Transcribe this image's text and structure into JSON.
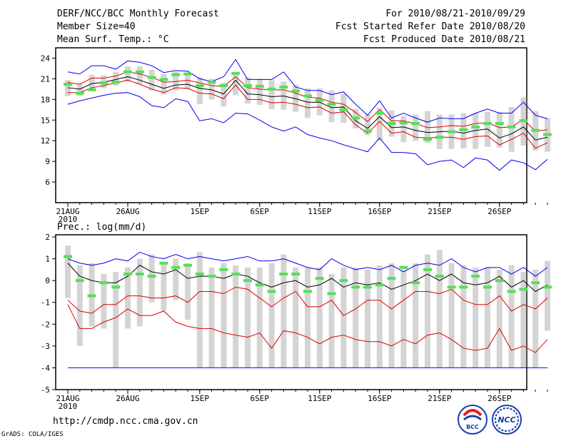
{
  "header": {
    "title": "DERF/NCC/BCC Monthly Forecast",
    "member_size": "Member Size=40",
    "variable": "Mean Surf. Temp.: °C",
    "period": "For 2010/08/21-2010/09/29",
    "started": "Fcst Started Refer Date 2010/08/20",
    "produced": "Fcst Produced Date 2010/08/21"
  },
  "footer": {
    "url": "http://cmdp.ncc.cma.gov.cn",
    "credit": "GrADS: COLA/IGES",
    "logo_bcc": "BCC",
    "logo_ncc": "NCC"
  },
  "colors": {
    "gray": "#d4d4d4",
    "green": "#55e055",
    "blue": "#0000ee",
    "red": "#dd0000",
    "black": "#000000"
  },
  "chart_data": [
    {
      "type": "box",
      "title": "Mean Surf. Temp.: °C",
      "ylabel": "°C",
      "ylim": [
        3,
        25.5
      ],
      "yticks": [
        6,
        9,
        12,
        15,
        18,
        21,
        24
      ],
      "x_tick_labels": [
        {
          "day": 0,
          "label": "21AUG",
          "sub": "2010"
        },
        {
          "day": 5,
          "label": "26AUG"
        },
        {
          "day": 11,
          "label": "1SEP"
        },
        {
          "day": 16,
          "label": "6SEP"
        },
        {
          "day": 21,
          "label": "11SEP"
        },
        {
          "day": 26,
          "label": "16SEP"
        },
        {
          "day": 31,
          "label": "21SEP"
        },
        {
          "day": 36,
          "label": "26SEP"
        }
      ],
      "series": {
        "box_low": [
          18.5,
          18.5,
          19.2,
          19.6,
          20.0,
          20.6,
          20.2,
          19.3,
          18.7,
          19.3,
          19.5,
          17.3,
          18.0,
          17.0,
          18.6,
          17.4,
          17.2,
          16.6,
          16.5,
          16.2,
          15.3,
          15.7,
          14.7,
          14.6,
          13.8,
          12.8,
          12.0,
          12.6,
          11.8,
          12.0,
          11.7,
          10.8,
          10.8,
          10.9,
          10.8,
          11.1,
          11.0,
          10.4,
          11.3,
          10.6,
          10.4
        ],
        "box_high": [
          20.8,
          20.2,
          21.6,
          21.5,
          22.0,
          22.8,
          22.8,
          22.3,
          21.7,
          22.0,
          21.6,
          21.2,
          21.0,
          20.4,
          22.0,
          21.2,
          21.0,
          20.8,
          20.6,
          20.1,
          19.6,
          19.6,
          19.3,
          18.8,
          16.6,
          15.8,
          16.8,
          16.4,
          15.6,
          15.8,
          16.3,
          15.8,
          15.8,
          16.0,
          16.0,
          16.2,
          16.2,
          16.9,
          18.3,
          16.3,
          15.3
        ],
        "ens_max": [
          22.0,
          21.7,
          22.9,
          22.9,
          22.4,
          23.6,
          23.4,
          22.9,
          21.9,
          22.2,
          22.1,
          21.0,
          20.6,
          21.3,
          23.8,
          20.9,
          20.9,
          20.9,
          22.0,
          19.8,
          19.3,
          19.3,
          18.7,
          19.1,
          17.3,
          15.7,
          17.8,
          15.3,
          16.0,
          15.3,
          14.7,
          15.3,
          15.2,
          15.2,
          16.0,
          16.6,
          16.0,
          16.0,
          17.6,
          15.7,
          15.2
        ],
        "upper_sd": [
          20.5,
          20.2,
          21.1,
          21.1,
          21.4,
          22.0,
          21.7,
          21.2,
          20.5,
          20.6,
          20.8,
          20.4,
          20.0,
          19.9,
          21.3,
          19.7,
          19.5,
          19.4,
          19.4,
          18.9,
          18.3,
          18.2,
          17.6,
          17.3,
          16.1,
          14.8,
          16.5,
          14.9,
          14.9,
          14.5,
          13.9,
          14.0,
          14.2,
          14.1,
          14.5,
          14.6,
          13.9,
          14.0,
          15.1,
          13.4,
          13.6
        ],
        "ens_mean": [
          19.7,
          19.5,
          20.3,
          20.5,
          20.9,
          21.3,
          20.8,
          20.2,
          19.6,
          20.1,
          20.2,
          19.6,
          19.4,
          18.8,
          20.8,
          18.8,
          18.7,
          18.4,
          18.5,
          18.1,
          17.6,
          17.6,
          16.8,
          16.9,
          14.9,
          13.8,
          15.5,
          13.9,
          14.0,
          13.5,
          13.2,
          13.3,
          13.4,
          13.1,
          13.5,
          13.7,
          12.4,
          13.0,
          14.0,
          12.1,
          12.5
        ],
        "lower_sd": [
          19.0,
          19.0,
          19.7,
          20.0,
          20.4,
          20.8,
          20.2,
          19.5,
          19.0,
          19.7,
          19.6,
          18.9,
          18.8,
          18.1,
          20.1,
          18.0,
          18.0,
          17.5,
          17.6,
          17.3,
          16.8,
          16.9,
          16.0,
          16.2,
          14.3,
          13.1,
          14.8,
          13.1,
          13.3,
          12.5,
          12.4,
          12.5,
          12.5,
          12.2,
          12.6,
          12.7,
          11.4,
          12.2,
          13.1,
          10.9,
          11.7
        ],
        "ens_min": [
          17.3,
          17.8,
          18.2,
          18.6,
          18.9,
          19.0,
          18.4,
          17.1,
          16.8,
          18.1,
          17.7,
          14.9,
          15.2,
          14.6,
          16.0,
          15.9,
          15.0,
          14.0,
          13.4,
          14.0,
          12.9,
          12.4,
          12.0,
          11.4,
          10.9,
          10.4,
          12.4,
          10.3,
          10.3,
          10.1,
          8.5,
          9.0,
          9.2,
          8.1,
          9.5,
          9.2,
          7.7,
          9.2,
          8.8,
          7.8,
          9.3
        ],
        "obs_marker": [
          20.2,
          18.9,
          19.4,
          20.4,
          20.5,
          22.0,
          22.0,
          21.2,
          20.9,
          21.6,
          21.7,
          20.0,
          20.5,
          20.0,
          21.8,
          20.0,
          19.9,
          19.5,
          19.8,
          19.2,
          18.5,
          17.9,
          17.3,
          16.5,
          15.3,
          13.4,
          16.0,
          14.5,
          14.6,
          14.5,
          12.2,
          12.5,
          13.3,
          13.6,
          14.0,
          14.5,
          14.5,
          14.0,
          14.9,
          13.5,
          12.9
        ]
      }
    },
    {
      "type": "box",
      "title": "Prec.: log(mm/d)",
      "ylabel": "log(mm/d)",
      "ylim": [
        -5,
        2.1
      ],
      "yticks": [
        -5,
        -4,
        -3,
        -2,
        -1,
        0,
        1,
        2
      ],
      "x_tick_labels": [
        {
          "day": 0,
          "label": "21AUG",
          "sub": "2010"
        },
        {
          "day": 5,
          "label": "26AUG"
        },
        {
          "day": 11,
          "label": "1SEP"
        },
        {
          "day": 16,
          "label": "6SEP"
        },
        {
          "day": 21,
          "label": "11SEP"
        },
        {
          "day": 26,
          "label": "16SEP"
        },
        {
          "day": 31,
          "label": "21SEP"
        },
        {
          "day": 36,
          "label": "26SEP"
        }
      ],
      "series": {
        "box_low": [
          -0.8,
          -3.0,
          -2.1,
          -2.2,
          -4.0,
          -2.2,
          -2.1,
          -1.0,
          -1.4,
          -0.9,
          -1.8,
          -4.0,
          -4.0,
          -4.0,
          -4.0,
          -4.0,
          -4.0,
          -4.0,
          -4.0,
          -4.0,
          -4.0,
          -4.0,
          -4.0,
          -4.0,
          -4.0,
          -4.0,
          -4.0,
          -4.0,
          -4.0,
          -4.0,
          -4.0,
          -4.0,
          -4.0,
          -4.0,
          -4.0,
          -4.0,
          -4.0,
          -4.0,
          -4.0,
          -4.0,
          -2.3
        ],
        "box_high": [
          1.6,
          0.7,
          0.8,
          0.3,
          0.4,
          0.6,
          1.0,
          1.2,
          0.8,
          1.0,
          0.8,
          1.3,
          0.6,
          0.8,
          0.7,
          0.6,
          0.6,
          0.8,
          1.2,
          0.6,
          0.6,
          0.6,
          0.3,
          0.6,
          0.6,
          0.5,
          0.7,
          0.8,
          0.5,
          0.8,
          1.2,
          1.4,
          0.8,
          0.7,
          0.6,
          0.6,
          0.5,
          0.7,
          0.4,
          0.5,
          0.9
        ],
        "ens_max": [
          1.0,
          0.8,
          0.7,
          0.8,
          1.0,
          0.9,
          1.3,
          1.1,
          1.0,
          1.2,
          1.0,
          1.1,
          1.0,
          0.9,
          1.0,
          1.1,
          0.9,
          0.9,
          1.0,
          0.8,
          0.6,
          0.5,
          1.0,
          0.7,
          0.5,
          0.6,
          0.5,
          0.7,
          0.4,
          0.7,
          0.8,
          0.7,
          1.0,
          0.6,
          0.4,
          0.6,
          0.6,
          0.3,
          0.6,
          0.2,
          0.6
        ],
        "ens_mean": [
          0.8,
          0.2,
          0.0,
          -0.1,
          -0.1,
          0.2,
          0.7,
          0.4,
          0.3,
          0.5,
          0.1,
          0.2,
          0.2,
          0.1,
          0.3,
          0.2,
          -0.1,
          -0.3,
          -0.1,
          0.0,
          -0.3,
          -0.2,
          0.1,
          -0.3,
          -0.1,
          -0.2,
          -0.1,
          -0.4,
          -0.2,
          0.0,
          0.3,
          0.0,
          0.3,
          -0.1,
          -0.2,
          -0.1,
          0.2,
          -0.3,
          0.0,
          -0.5,
          -0.2
        ],
        "upper_red": [
          -0.9,
          -1.4,
          -1.5,
          -1.1,
          -1.1,
          -0.7,
          -0.7,
          -0.8,
          -0.8,
          -0.7,
          -1.0,
          -0.5,
          -0.5,
          -0.6,
          -0.3,
          -0.4,
          -0.8,
          -1.2,
          -0.8,
          -0.5,
          -1.2,
          -1.2,
          -0.9,
          -1.6,
          -1.3,
          -0.9,
          -0.9,
          -1.3,
          -0.9,
          -0.5,
          -0.5,
          -0.6,
          -0.4,
          -0.9,
          -1.1,
          -1.1,
          -0.7,
          -1.4,
          -1.1,
          -1.3,
          -0.8
        ],
        "lower_red": [
          -1.1,
          -2.2,
          -2.2,
          -1.9,
          -1.7,
          -1.3,
          -1.6,
          -1.6,
          -1.4,
          -1.9,
          -2.1,
          -2.2,
          -2.2,
          -2.4,
          -2.5,
          -2.6,
          -2.4,
          -3.1,
          -2.3,
          -2.4,
          -2.6,
          -2.9,
          -2.6,
          -2.5,
          -2.7,
          -2.8,
          -2.8,
          -3.0,
          -2.7,
          -2.9,
          -2.5,
          -2.4,
          -2.7,
          -3.1,
          -3.2,
          -3.1,
          -2.2,
          -3.2,
          -3.0,
          -3.3,
          -2.7
        ],
        "obs_marker": [
          1.1,
          0.0,
          -0.7,
          -0.1,
          -0.3,
          0.3,
          0.3,
          0.2,
          0.8,
          0.6,
          0.7,
          0.3,
          0.2,
          0.5,
          0.3,
          0.0,
          -0.2,
          -0.5,
          0.3,
          0.3,
          -0.5,
          0.1,
          -0.6,
          0.0,
          -0.3,
          -0.3,
          -0.2,
          0.1,
          0.6,
          -0.1,
          0.5,
          0.2,
          -0.3,
          -0.3,
          0.2,
          -0.3,
          0.0,
          -0.5,
          -0.4,
          -0.1,
          -0.3
        ],
        "floor": -4.0
      }
    }
  ]
}
